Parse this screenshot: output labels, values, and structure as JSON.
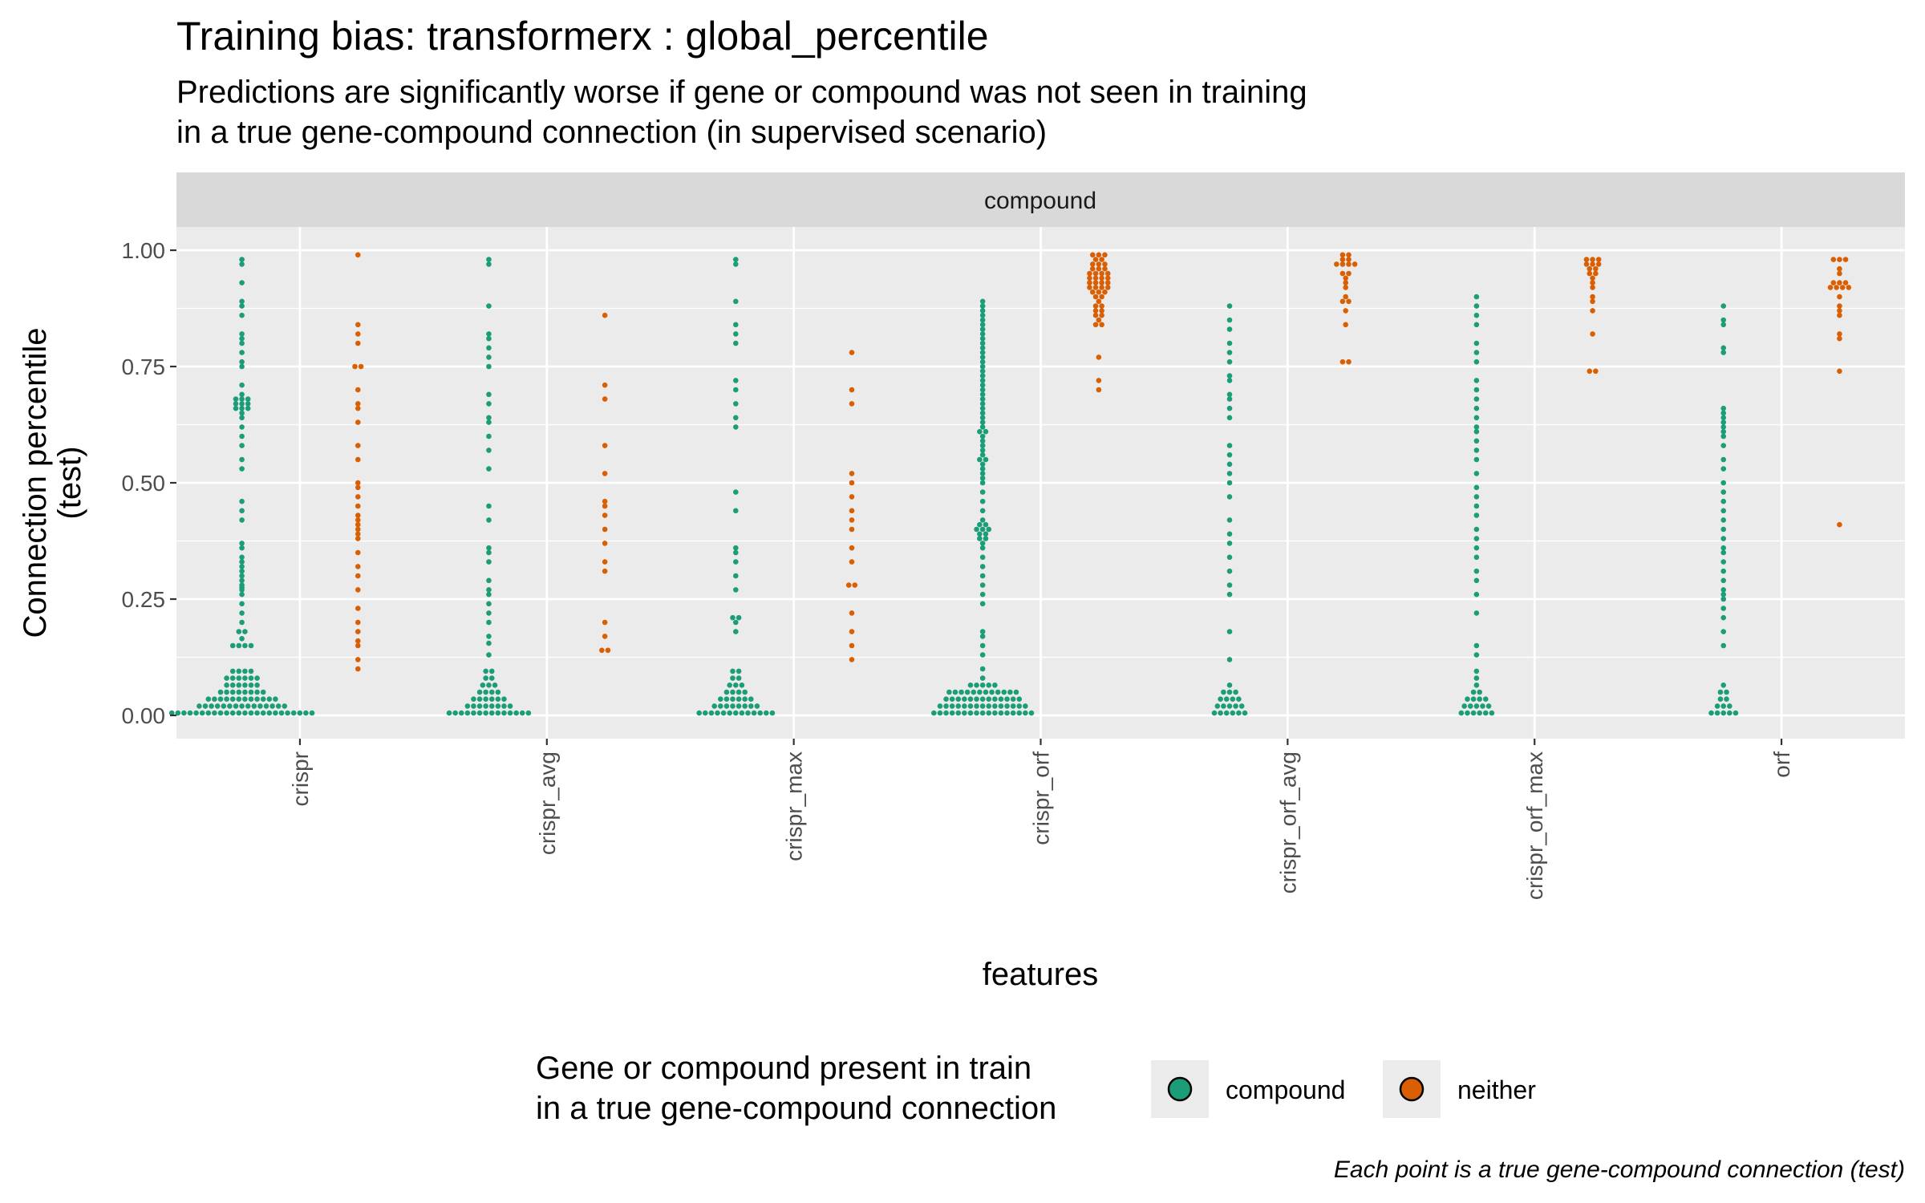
{
  "chart_data": {
    "type": "scatter",
    "subtype": "beeswarm",
    "title": "Training bias: transformerx : global_percentile",
    "subtitle": [
      "Predictions are significantly worse if gene or compound was not seen in training",
      "in a true gene-compound connection (in supervised scenario)"
    ],
    "facet_label": "compound",
    "xlabel": "features",
    "ylabel": [
      "Connection percentile",
      "(test)"
    ],
    "ylim": [
      -0.05,
      1.05
    ],
    "y_ticks": [
      0,
      0.25,
      0.5,
      0.75,
      1
    ],
    "y_tick_labels": [
      "0.00",
      "0.25",
      "0.50",
      "0.75",
      "1.00"
    ],
    "categories": [
      "crispr",
      "crispr_avg",
      "crispr_max",
      "crispr_orf",
      "crispr_orf_avg",
      "crispr_orf_max",
      "orf"
    ],
    "grid": true,
    "legend": {
      "title": [
        "Gene or compound present in train",
        "in a true gene-compound connection"
      ],
      "placement": "bottom",
      "entries": [
        {
          "label": "compound",
          "color": "#1b9e77"
        },
        {
          "label": "neither",
          "color": "#d95f02"
        }
      ]
    },
    "caption": "Each point is a true gene-compound connection (test)",
    "series": [
      {
        "name": "compound",
        "color": "#1b9e77",
        "values": [
          [
            0.005,
            0.005,
            0.005,
            0.005,
            0.005,
            0.005,
            0.005,
            0.005,
            0.005,
            0.005,
            0.005,
            0.005,
            0.005,
            0.005,
            0.005,
            0.005,
            0.005,
            0.005,
            0.005,
            0.005,
            0.005,
            0.005,
            0.005,
            0.005,
            0.02,
            0.02,
            0.02,
            0.02,
            0.02,
            0.02,
            0.02,
            0.02,
            0.02,
            0.02,
            0.02,
            0.02,
            0.02,
            0.02,
            0.02,
            0.035,
            0.035,
            0.035,
            0.035,
            0.035,
            0.035,
            0.035,
            0.035,
            0.035,
            0.035,
            0.035,
            0.035,
            0.05,
            0.05,
            0.05,
            0.05,
            0.05,
            0.05,
            0.05,
            0.05,
            0.065,
            0.065,
            0.065,
            0.065,
            0.065,
            0.065,
            0.08,
            0.08,
            0.08,
            0.08,
            0.08,
            0.08,
            0.095,
            0.095,
            0.095,
            0.095,
            0.15,
            0.15,
            0.15,
            0.15,
            0.165,
            0.18,
            0.18,
            0.2,
            0.22,
            0.24,
            0.26,
            0.27,
            0.275,
            0.28,
            0.29,
            0.3,
            0.31,
            0.32,
            0.33,
            0.34,
            0.36,
            0.37,
            0.42,
            0.44,
            0.46,
            0.53,
            0.55,
            0.58,
            0.6,
            0.62,
            0.64,
            0.65,
            0.66,
            0.66,
            0.66,
            0.67,
            0.67,
            0.67,
            0.68,
            0.68,
            0.68,
            0.69,
            0.71,
            0.75,
            0.76,
            0.78,
            0.8,
            0.81,
            0.82,
            0.86,
            0.88,
            0.89,
            0.93,
            0.97,
            0.98
          ],
          [
            0.005,
            0.005,
            0.005,
            0.005,
            0.005,
            0.005,
            0.005,
            0.005,
            0.005,
            0.005,
            0.005,
            0.005,
            0.005,
            0.005,
            0.02,
            0.02,
            0.02,
            0.02,
            0.02,
            0.02,
            0.02,
            0.02,
            0.035,
            0.035,
            0.035,
            0.035,
            0.035,
            0.035,
            0.05,
            0.05,
            0.05,
            0.05,
            0.065,
            0.065,
            0.065,
            0.08,
            0.08,
            0.095,
            0.095,
            0.13,
            0.155,
            0.17,
            0.2,
            0.22,
            0.24,
            0.26,
            0.27,
            0.29,
            0.33,
            0.35,
            0.36,
            0.42,
            0.45,
            0.53,
            0.57,
            0.6,
            0.63,
            0.64,
            0.67,
            0.69,
            0.75,
            0.77,
            0.79,
            0.81,
            0.82,
            0.88,
            0.97,
            0.98
          ],
          [
            0.005,
            0.005,
            0.005,
            0.005,
            0.005,
            0.005,
            0.005,
            0.005,
            0.005,
            0.005,
            0.005,
            0.005,
            0.005,
            0.02,
            0.02,
            0.02,
            0.02,
            0.02,
            0.02,
            0.02,
            0.02,
            0.035,
            0.035,
            0.035,
            0.035,
            0.035,
            0.035,
            0.05,
            0.05,
            0.05,
            0.05,
            0.065,
            0.065,
            0.065,
            0.08,
            0.08,
            0.095,
            0.095,
            0.18,
            0.2,
            0.21,
            0.21,
            0.27,
            0.3,
            0.33,
            0.35,
            0.36,
            0.44,
            0.48,
            0.62,
            0.64,
            0.67,
            0.7,
            0.72,
            0.8,
            0.82,
            0.84,
            0.89,
            0.97,
            0.98
          ],
          [
            0.005,
            0.005,
            0.005,
            0.005,
            0.005,
            0.005,
            0.005,
            0.005,
            0.005,
            0.005,
            0.005,
            0.005,
            0.005,
            0.005,
            0.005,
            0.005,
            0.005,
            0.02,
            0.02,
            0.02,
            0.02,
            0.02,
            0.02,
            0.02,
            0.02,
            0.02,
            0.02,
            0.02,
            0.02,
            0.02,
            0.02,
            0.02,
            0.035,
            0.035,
            0.035,
            0.035,
            0.035,
            0.035,
            0.035,
            0.035,
            0.035,
            0.035,
            0.035,
            0.035,
            0.035,
            0.05,
            0.05,
            0.05,
            0.05,
            0.05,
            0.05,
            0.05,
            0.05,
            0.05,
            0.05,
            0.05,
            0.05,
            0.065,
            0.065,
            0.065,
            0.065,
            0.065,
            0.08,
            0.1,
            0.13,
            0.15,
            0.17,
            0.18,
            0.24,
            0.26,
            0.28,
            0.3,
            0.32,
            0.34,
            0.36,
            0.37,
            0.38,
            0.38,
            0.39,
            0.39,
            0.4,
            0.4,
            0.4,
            0.41,
            0.41,
            0.42,
            0.44,
            0.46,
            0.48,
            0.5,
            0.51,
            0.52,
            0.53,
            0.54,
            0.55,
            0.55,
            0.56,
            0.57,
            0.58,
            0.59,
            0.6,
            0.61,
            0.61,
            0.62,
            0.63,
            0.64,
            0.65,
            0.66,
            0.67,
            0.68,
            0.69,
            0.7,
            0.71,
            0.72,
            0.73,
            0.74,
            0.75,
            0.76,
            0.77,
            0.78,
            0.79,
            0.8,
            0.81,
            0.82,
            0.83,
            0.84,
            0.85,
            0.86,
            0.87,
            0.88,
            0.89
          ],
          [
            0.005,
            0.005,
            0.005,
            0.005,
            0.005,
            0.005,
            0.02,
            0.02,
            0.02,
            0.02,
            0.02,
            0.035,
            0.035,
            0.035,
            0.035,
            0.05,
            0.05,
            0.05,
            0.065,
            0.12,
            0.18,
            0.26,
            0.28,
            0.31,
            0.34,
            0.37,
            0.39,
            0.42,
            0.47,
            0.5,
            0.52,
            0.54,
            0.56,
            0.58,
            0.64,
            0.66,
            0.68,
            0.69,
            0.72,
            0.73,
            0.76,
            0.78,
            0.8,
            0.83,
            0.85,
            0.88
          ],
          [
            0.005,
            0.005,
            0.005,
            0.005,
            0.005,
            0.005,
            0.02,
            0.02,
            0.02,
            0.02,
            0.02,
            0.035,
            0.035,
            0.035,
            0.035,
            0.05,
            0.05,
            0.065,
            0.08,
            0.095,
            0.13,
            0.15,
            0.22,
            0.26,
            0.29,
            0.31,
            0.34,
            0.36,
            0.38,
            0.4,
            0.43,
            0.45,
            0.47,
            0.49,
            0.52,
            0.55,
            0.57,
            0.59,
            0.61,
            0.62,
            0.64,
            0.66,
            0.68,
            0.7,
            0.72,
            0.76,
            0.78,
            0.8,
            0.84,
            0.86,
            0.88,
            0.9
          ],
          [
            0.005,
            0.005,
            0.005,
            0.005,
            0.005,
            0.02,
            0.02,
            0.02,
            0.035,
            0.035,
            0.05,
            0.05,
            0.065,
            0.15,
            0.18,
            0.21,
            0.23,
            0.25,
            0.26,
            0.27,
            0.29,
            0.31,
            0.33,
            0.35,
            0.36,
            0.38,
            0.4,
            0.42,
            0.44,
            0.46,
            0.48,
            0.5,
            0.53,
            0.55,
            0.58,
            0.6,
            0.61,
            0.62,
            0.63,
            0.64,
            0.65,
            0.66,
            0.78,
            0.79,
            0.84,
            0.85,
            0.88
          ]
        ]
      },
      {
        "name": "neither",
        "color": "#d95f02",
        "values": [
          [
            0.1,
            0.12,
            0.15,
            0.16,
            0.18,
            0.2,
            0.23,
            0.27,
            0.3,
            0.32,
            0.35,
            0.38,
            0.39,
            0.4,
            0.41,
            0.42,
            0.43,
            0.45,
            0.47,
            0.49,
            0.5,
            0.55,
            0.58,
            0.63,
            0.66,
            0.67,
            0.7,
            0.75,
            0.75,
            0.8,
            0.82,
            0.84,
            0.99
          ],
          [
            0.14,
            0.14,
            0.17,
            0.2,
            0.31,
            0.33,
            0.37,
            0.4,
            0.43,
            0.45,
            0.46,
            0.52,
            0.58,
            0.68,
            0.71,
            0.86
          ],
          [
            0.12,
            0.15,
            0.18,
            0.22,
            0.28,
            0.28,
            0.33,
            0.36,
            0.4,
            0.42,
            0.44,
            0.47,
            0.5,
            0.52,
            0.67,
            0.7,
            0.78
          ],
          [
            0.7,
            0.72,
            0.77,
            0.84,
            0.84,
            0.85,
            0.86,
            0.86,
            0.87,
            0.87,
            0.88,
            0.88,
            0.89,
            0.9,
            0.9,
            0.91,
            0.91,
            0.91,
            0.92,
            0.92,
            0.92,
            0.92,
            0.93,
            0.93,
            0.93,
            0.93,
            0.94,
            0.94,
            0.94,
            0.94,
            0.95,
            0.95,
            0.95,
            0.95,
            0.96,
            0.96,
            0.96,
            0.97,
            0.97,
            0.97,
            0.98,
            0.98,
            0.99,
            0.99,
            0.99
          ],
          [
            0.76,
            0.76,
            0.84,
            0.87,
            0.89,
            0.89,
            0.9,
            0.92,
            0.93,
            0.94,
            0.95,
            0.95,
            0.97,
            0.97,
            0.97,
            0.97,
            0.98,
            0.98,
            0.99,
            0.99
          ],
          [
            0.74,
            0.74,
            0.82,
            0.87,
            0.89,
            0.9,
            0.92,
            0.93,
            0.94,
            0.95,
            0.95,
            0.96,
            0.96,
            0.97,
            0.97,
            0.97,
            0.98,
            0.98,
            0.98
          ],
          [
            0.41,
            0.74,
            0.81,
            0.82,
            0.86,
            0.87,
            0.88,
            0.9,
            0.92,
            0.92,
            0.92,
            0.92,
            0.93,
            0.93,
            0.93,
            0.95,
            0.96,
            0.98,
            0.98,
            0.98
          ]
        ]
      }
    ]
  }
}
